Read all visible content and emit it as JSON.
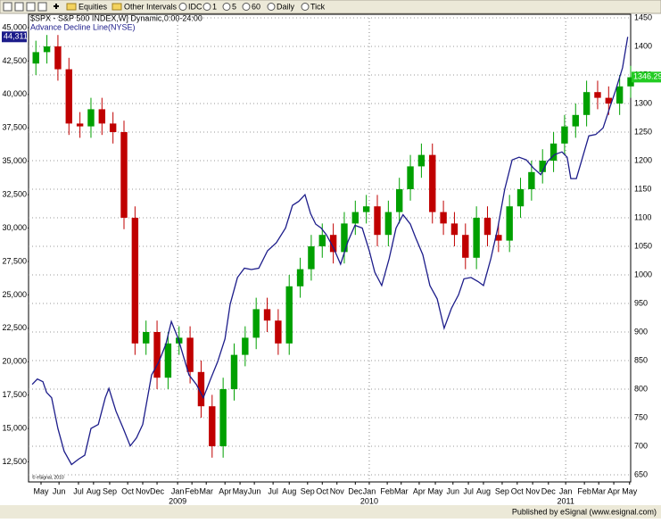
{
  "toolbar": {
    "items": [
      "Equities",
      "Other Intervals",
      "IDC",
      "1",
      "5",
      "60",
      "Daily",
      "Tick"
    ]
  },
  "footer": "Published by eSignal (www.esignal.com)",
  "chart_data": {
    "type": "candlestick",
    "copyright": "© eSignal, 2010",
    "xlim": [
      0,
      164
    ],
    "xticks": [
      {
        "value": 3.4,
        "label": "May"
      },
      {
        "value": 8.3,
        "label": "Jun"
      },
      {
        "value": 13.6,
        "label": "Jul"
      },
      {
        "value": 17.7,
        "label": "Aug"
      },
      {
        "value": 22.1,
        "label": "Sep"
      },
      {
        "value": 27,
        "label": "Oct"
      },
      {
        "value": 31.1,
        "label": "Nov"
      },
      {
        "value": 35,
        "label": "Dec"
      },
      {
        "value": 40.6,
        "label": "Jan"
      },
      {
        "value": 44.5,
        "label": "Feb"
      },
      {
        "value": 48.4,
        "label": "Mar"
      },
      {
        "value": 53.5,
        "label": "Apr"
      },
      {
        "value": 57.6,
        "label": "May"
      },
      {
        "value": 61.5,
        "label": "Jun"
      },
      {
        "value": 66.6,
        "label": "Jul"
      },
      {
        "value": 71,
        "label": "Aug"
      },
      {
        "value": 76,
        "label": "Sep"
      },
      {
        "value": 80,
        "label": "Oct"
      },
      {
        "value": 84,
        "label": "Nov"
      },
      {
        "value": 89,
        "label": "Dec"
      },
      {
        "value": 92.8,
        "label": "Jan"
      },
      {
        "value": 97.7,
        "label": "Feb"
      },
      {
        "value": 101.5,
        "label": "Mar"
      },
      {
        "value": 106.4,
        "label": "Apr"
      },
      {
        "value": 110.8,
        "label": "May"
      },
      {
        "value": 115.6,
        "label": "Jun"
      },
      {
        "value": 119.8,
        "label": "Jul"
      },
      {
        "value": 123.9,
        "label": "Aug"
      },
      {
        "value": 129,
        "label": "Sep"
      },
      {
        "value": 133.1,
        "label": "Oct"
      },
      {
        "value": 137.3,
        "label": "Nov"
      },
      {
        "value": 141.6,
        "label": "Dec"
      },
      {
        "value": 146.3,
        "label": "Jan"
      },
      {
        "value": 151.4,
        "label": "Feb"
      },
      {
        "value": 155.3,
        "label": "Mar"
      },
      {
        "value": 159.4,
        "label": "Apr"
      },
      {
        "value": 163.7,
        "label": "May"
      }
    ],
    "year_labels": [
      {
        "value": 40.6,
        "label": "2009"
      },
      {
        "value": 92.8,
        "label": "2010"
      },
      {
        "value": 146.3,
        "label": "2011"
      }
    ],
    "ylim": [
      11000,
      46000
    ],
    "yticks": [
      {
        "value": 45000,
        "label": "45,000"
      },
      {
        "value": 42500,
        "label": "42,500"
      },
      {
        "value": 40000,
        "label": "40,000"
      },
      {
        "value": 37500,
        "label": "37,500"
      },
      {
        "value": 35000,
        "label": "35,000"
      },
      {
        "value": 32500,
        "label": "32,500"
      },
      {
        "value": 30000,
        "label": "30,000"
      },
      {
        "value": 27500,
        "label": "27,500"
      },
      {
        "value": 25000,
        "label": "25,000"
      },
      {
        "value": 22500,
        "label": "22,500"
      },
      {
        "value": 20000,
        "label": "20,000"
      },
      {
        "value": 17500,
        "label": "17,500"
      },
      {
        "value": 15000,
        "label": "15,000"
      },
      {
        "value": 12500,
        "label": "12,500"
      }
    ],
    "y2lim": [
      637.5,
      1456.25
    ],
    "y2ticks": [
      1450,
      1400,
      1350,
      1300,
      1250,
      1200,
      1150,
      1100,
      1050,
      1000,
      950,
      900,
      850,
      800,
      750,
      700,
      650
    ],
    "grid": true,
    "up_color": "#00a000",
    "down_color": "#c00000",
    "series": [
      {
        "name": "$SPX - S&P 500 INDEX,W] Dynamic,0:00-24:00",
        "type": "candlestick",
        "axis": "y2",
        "x": [
          2,
          5,
          8,
          11,
          14,
          17,
          20,
          23,
          26,
          29,
          32,
          35,
          38,
          41,
          44,
          47,
          50,
          53,
          56,
          59,
          62,
          65,
          68,
          71,
          74,
          77,
          80,
          83,
          86,
          89,
          92,
          95,
          98,
          101,
          104,
          107,
          110,
          113,
          116,
          119,
          122,
          125,
          128,
          131,
          134,
          137,
          140,
          143,
          146,
          149,
          152,
          155,
          158,
          161,
          164
        ],
        "open": [
          1370,
          1390,
          1400,
          1360,
          1265,
          1260,
          1290,
          1265,
          1250,
          1100,
          880,
          900,
          820,
          880,
          890,
          830,
          770,
          700,
          800,
          860,
          890,
          940,
          920,
          880,
          980,
          1010,
          1050,
          1070,
          1040,
          1090,
          1110,
          1120,
          1070,
          1110,
          1150,
          1190,
          1210,
          1110,
          1090,
          1070,
          1030,
          1100,
          1070,
          1060,
          1120,
          1150,
          1180,
          1200,
          1230,
          1260,
          1280,
          1320,
          1310,
          1300,
          1330
        ],
        "high": [
          1410,
          1420,
          1420,
          1380,
          1285,
          1310,
          1310,
          1285,
          1270,
          1120,
          920,
          920,
          900,
          910,
          910,
          850,
          790,
          820,
          880,
          910,
          960,
          960,
          940,
          1000,
          1030,
          1070,
          1090,
          1090,
          1110,
          1130,
          1140,
          1140,
          1130,
          1170,
          1210,
          1230,
          1230,
          1130,
          1110,
          1090,
          1120,
          1120,
          1090,
          1140,
          1170,
          1200,
          1220,
          1250,
          1280,
          1300,
          1340,
          1340,
          1330,
          1350,
          1366
        ],
        "low": [
          1350,
          1370,
          1340,
          1245,
          1240,
          1240,
          1245,
          1230,
          1080,
          860,
          860,
          800,
          800,
          860,
          810,
          750,
          680,
          680,
          780,
          840,
          870,
          900,
          860,
          860,
          960,
          990,
          1030,
          1020,
          1020,
          1070,
          1090,
          1050,
          1050,
          1090,
          1130,
          1170,
          1090,
          1070,
          1050,
          1010,
          1010,
          1050,
          1040,
          1040,
          1100,
          1130,
          1160,
          1180,
          1210,
          1240,
          1260,
          1290,
          1280,
          1280,
          1310
        ],
        "close": [
          1390,
          1400,
          1360,
          1265,
          1260,
          1290,
          1265,
          1250,
          1100,
          880,
          900,
          820,
          880,
          890,
          830,
          770,
          700,
          800,
          860,
          890,
          940,
          920,
          880,
          980,
          1010,
          1050,
          1070,
          1040,
          1090,
          1110,
          1120,
          1070,
          1110,
          1150,
          1190,
          1210,
          1110,
          1090,
          1070,
          1030,
          1100,
          1070,
          1060,
          1120,
          1150,
          1180,
          1200,
          1230,
          1260,
          1280,
          1320,
          1310,
          1300,
          1330,
          1346
        ]
      },
      {
        "name": "Advance Decline Line(NYSE)",
        "type": "line",
        "axis": "y",
        "color": "#1c1c8a",
        "x": [
          1,
          2.4,
          3.9,
          4.9,
          6.3,
          8,
          9.7,
          11.7,
          13.6,
          15.3,
          17,
          19,
          20.9,
          21.9,
          23.8,
          25.8,
          27.7,
          29.4,
          31.1,
          33.5,
          35.5,
          37.4,
          38.9,
          40.8,
          42.3,
          43.7,
          45.7,
          47.6,
          49.6,
          51.5,
          53.5,
          54.9,
          56.9,
          58.8,
          60.7,
          62.7,
          65.1,
          67.5,
          70,
          71.9,
          73.6,
          75.3,
          76.8,
          78.2,
          79.7,
          81.1,
          83.1,
          85,
          87,
          88.9,
          90.9,
          92.8,
          94.3,
          96.2,
          98.2,
          100.1,
          102,
          104,
          105.4,
          107.4,
          109.3,
          111.3,
          113.2,
          115.2,
          117.1,
          118.6,
          120.5,
          122.4,
          123.9,
          125.9,
          127.8,
          129.7,
          131.7,
          133.6,
          135.6,
          137.5,
          139.5,
          141.4,
          143.3,
          145.3,
          146.7,
          147.7,
          149.2,
          150.6,
          152.6,
          154.5,
          156.5,
          158.4,
          159.9,
          161.8,
          163.2
        ],
        "values": [
          18300,
          18700,
          18500,
          17700,
          17300,
          15000,
          13300,
          12300,
          12700,
          13000,
          15000,
          15300,
          17300,
          18000,
          16300,
          15000,
          13700,
          14300,
          15300,
          19000,
          20000,
          21300,
          23000,
          21700,
          20300,
          19000,
          18300,
          17300,
          18700,
          20000,
          21700,
          24300,
          26300,
          27000,
          26900,
          27000,
          28300,
          28900,
          30000,
          31700,
          32000,
          32500,
          31100,
          30300,
          30000,
          29500,
          28500,
          27300,
          29000,
          30200,
          30000,
          28300,
          26700,
          25700,
          27700,
          30000,
          31000,
          30300,
          29300,
          28000,
          25700,
          24700,
          22500,
          24000,
          25000,
          26200,
          26300,
          26000,
          25700,
          27700,
          30000,
          32900,
          35100,
          35300,
          35100,
          34500,
          34000,
          35000,
          35500,
          35700,
          35300,
          33700,
          33700,
          35000,
          36900,
          37000,
          37500,
          39100,
          40300,
          42000,
          44311
        ]
      }
    ],
    "annotations": [
      {
        "value": 44311,
        "label": "44,311",
        "axis": "y"
      },
      {
        "value": 1346.29,
        "axis": "y2"
      }
    ]
  }
}
